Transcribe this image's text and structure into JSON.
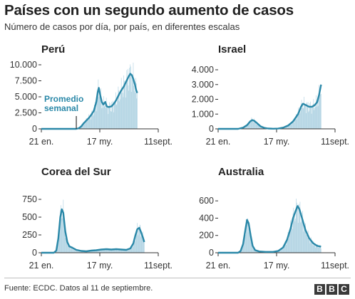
{
  "header": {
    "title": "Países con un segundo aumento de casos",
    "subtitle": "Número de casos por día, por país, en diferentes escalas"
  },
  "footer": {
    "source": "Fuente: ECDC. Datos al 11 de septiembre.",
    "logo": [
      "B",
      "B",
      "C"
    ]
  },
  "colors": {
    "bar": "#a9cfe0",
    "line": "#2a88a8",
    "axis": "#333333",
    "annotation": "#2a88a8"
  },
  "chart_data": [
    {
      "type": "area",
      "title": "Perú",
      "ylim": [
        0,
        10000
      ],
      "yticks": [
        0,
        2500,
        5000,
        7500,
        10000
      ],
      "ytick_labels": [
        "0",
        "2.500",
        "5.000",
        "7.500",
        "10.000"
      ],
      "xlim": [
        0,
        234
      ],
      "xticks": [
        0,
        117,
        234
      ],
      "xtick_labels": [
        "21 en.",
        "17 my.",
        "11sept."
      ],
      "annotation": {
        "lines": [
          "Promedio",
          "semanal"
        ],
        "x": 70,
        "y": 0
      },
      "series": [
        {
          "values": [
            [
              0,
              0
            ],
            [
              70,
              0
            ],
            [
              75,
              100
            ],
            [
              80,
              400
            ],
            [
              85,
              900
            ],
            [
              90,
              1300
            ],
            [
              95,
              1700
            ],
            [
              100,
              2200
            ],
            [
              105,
              2800
            ],
            [
              110,
              4200
            ],
            [
              113,
              5800
            ],
            [
              115,
              6400
            ],
            [
              118,
              5200
            ],
            [
              121,
              4200
            ],
            [
              124,
              3800
            ],
            [
              128,
              4200
            ],
            [
              131,
              3500
            ],
            [
              135,
              3400
            ],
            [
              140,
              3500
            ],
            [
              145,
              3900
            ],
            [
              150,
              4500
            ],
            [
              155,
              5300
            ],
            [
              160,
              6000
            ],
            [
              165,
              6600
            ],
            [
              170,
              7400
            ],
            [
              175,
              8200
            ],
            [
              178,
              8600
            ],
            [
              181,
              8400
            ],
            [
              184,
              7800
            ],
            [
              187,
              7000
            ],
            [
              190,
              6000
            ],
            [
              192,
              5600
            ]
          ]
        }
      ]
    },
    {
      "type": "area",
      "title": "Israel",
      "ylim": [
        0,
        4000
      ],
      "yticks": [
        0,
        1000,
        2000,
        3000,
        4000
      ],
      "ytick_labels": [
        "0",
        "1.000",
        "2.000",
        "3.000",
        "4.000"
      ],
      "xlim": [
        0,
        234
      ],
      "xticks": [
        0,
        117,
        234
      ],
      "xtick_labels": [
        "21 en.",
        "17 my.",
        "11sept."
      ],
      "series": [
        {
          "values": [
            [
              0,
              0
            ],
            [
              40,
              0
            ],
            [
              50,
              80
            ],
            [
              58,
              250
            ],
            [
              64,
              500
            ],
            [
              68,
              600
            ],
            [
              72,
              550
            ],
            [
              78,
              380
            ],
            [
              85,
              170
            ],
            [
              92,
              70
            ],
            [
              100,
              25
            ],
            [
              110,
              10
            ],
            [
              120,
              20
            ],
            [
              130,
              80
            ],
            [
              140,
              220
            ],
            [
              150,
              500
            ],
            [
              160,
              1000
            ],
            [
              166,
              1500
            ],
            [
              170,
              1700
            ],
            [
              176,
              1600
            ],
            [
              182,
              1500
            ],
            [
              188,
              1500
            ],
            [
              193,
              1600
            ],
            [
              198,
              1800
            ],
            [
              202,
              2300
            ],
            [
              206,
              3000
            ]
          ]
        }
      ]
    },
    {
      "type": "area",
      "title": "Corea del Sur",
      "ylim": [
        0,
        750
      ],
      "yticks": [
        0,
        250,
        500,
        750
      ],
      "ytick_labels": [
        "0",
        "250",
        "500",
        "750"
      ],
      "xlim": [
        0,
        234
      ],
      "xticks": [
        0,
        117,
        234
      ],
      "xtick_labels": [
        "21 en.",
        "17 my.",
        "11sept."
      ],
      "series": [
        {
          "values": [
            [
              0,
              0
            ],
            [
              25,
              0
            ],
            [
              30,
              30
            ],
            [
              34,
              200
            ],
            [
              38,
              500
            ],
            [
              41,
              610
            ],
            [
              44,
              560
            ],
            [
              48,
              300
            ],
            [
              52,
              150
            ],
            [
              56,
              90
            ],
            [
              62,
              70
            ],
            [
              70,
              40
            ],
            [
              80,
              25
            ],
            [
              90,
              20
            ],
            [
              100,
              30
            ],
            [
              110,
              35
            ],
            [
              120,
              45
            ],
            [
              130,
              50
            ],
            [
              140,
              45
            ],
            [
              150,
              50
            ],
            [
              160,
              45
            ],
            [
              170,
              40
            ],
            [
              178,
              60
            ],
            [
              184,
              130
            ],
            [
              188,
              240
            ],
            [
              192,
              330
            ],
            [
              196,
              350
            ],
            [
              200,
              280
            ],
            [
              203,
              220
            ],
            [
              206,
              150
            ]
          ]
        }
      ]
    },
    {
      "type": "area",
      "title": "Australia",
      "ylim": [
        0,
        700
      ],
      "yticks": [
        0,
        200,
        400,
        600
      ],
      "ytick_labels": [
        "0",
        "200",
        "400",
        "600"
      ],
      "xlim": [
        0,
        234
      ],
      "xticks": [
        0,
        117,
        234
      ],
      "xtick_labels": [
        "21 en.",
        "17 my.",
        "11sept."
      ],
      "series": [
        {
          "values": [
            [
              0,
              0
            ],
            [
              40,
              0
            ],
            [
              45,
              20
            ],
            [
              50,
              100
            ],
            [
              55,
              280
            ],
            [
              58,
              380
            ],
            [
              61,
              340
            ],
            [
              65,
              200
            ],
            [
              69,
              80
            ],
            [
              74,
              30
            ],
            [
              82,
              15
            ],
            [
              95,
              10
            ],
            [
              110,
              10
            ],
            [
              120,
              20
            ],
            [
              130,
              60
            ],
            [
              138,
              150
            ],
            [
              145,
              280
            ],
            [
              150,
              400
            ],
            [
              155,
              480
            ],
            [
              159,
              540
            ],
            [
              163,
              500
            ],
            [
              168,
              400
            ],
            [
              175,
              260
            ],
            [
              182,
              170
            ],
            [
              190,
              110
            ],
            [
              198,
              80
            ],
            [
              206,
              70
            ]
          ]
        }
      ]
    }
  ]
}
